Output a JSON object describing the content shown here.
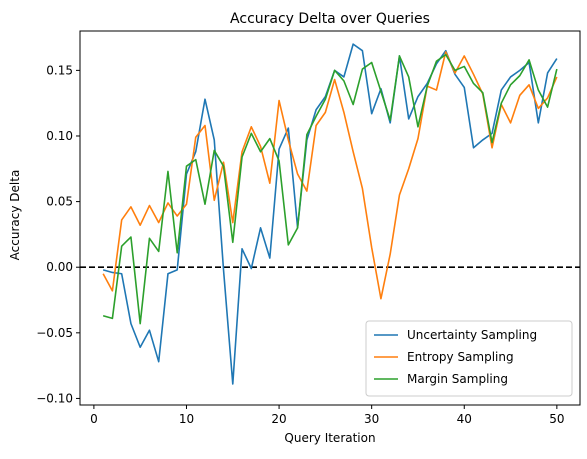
{
  "chart_data": {
    "type": "line",
    "title": "Accuracy Delta over Queries",
    "xlabel": "Query Iteration",
    "ylabel": "Accuracy Delta",
    "xlim": [
      -1.5,
      52.5
    ],
    "ylim": [
      -0.105,
      0.18
    ],
    "xticks": [
      0,
      10,
      20,
      30,
      40,
      50
    ],
    "yticks": [
      -0.1,
      -0.05,
      0.0,
      0.05,
      0.1,
      0.15
    ],
    "xtick_labels": [
      "0",
      "10",
      "20",
      "30",
      "40",
      "50"
    ],
    "ytick_labels": [
      "−0.10",
      "−0.05",
      "0.00",
      "0.05",
      "0.10",
      "0.15"
    ],
    "grid": false,
    "legend_position": "lower-right",
    "reference_line": {
      "y": 0.0,
      "style": "dashed",
      "color": "#000000"
    },
    "x": [
      1,
      2,
      3,
      4,
      5,
      6,
      7,
      8,
      9,
      10,
      11,
      12,
      13,
      14,
      15,
      16,
      17,
      18,
      19,
      20,
      21,
      22,
      23,
      24,
      25,
      26,
      27,
      28,
      29,
      30,
      31,
      32,
      33,
      34,
      35,
      36,
      37,
      38,
      39,
      40,
      41,
      42,
      43,
      44,
      45,
      46,
      47,
      48,
      49,
      50
    ],
    "series": [
      {
        "name": "Uncertainty Sampling",
        "color": "#1f77b4",
        "values": [
          -0.002,
          -0.004,
          -0.005,
          -0.043,
          -0.061,
          -0.048,
          -0.072,
          -0.005,
          -0.002,
          0.071,
          0.088,
          0.128,
          0.097,
          -0.002,
          -0.089,
          0.014,
          -0.001,
          0.03,
          0.007,
          0.09,
          0.106,
          0.03,
          0.097,
          0.12,
          0.13,
          0.15,
          0.145,
          0.17,
          0.165,
          0.117,
          0.136,
          0.11,
          0.161,
          0.113,
          0.13,
          0.14,
          0.155,
          0.165,
          0.147,
          0.137,
          0.091,
          0.097,
          0.102,
          0.135,
          0.145,
          0.15,
          0.156,
          0.11,
          0.148,
          0.159
        ]
      },
      {
        "name": "Entropy Sampling",
        "color": "#ff7f0e",
        "values": [
          -0.005,
          -0.018,
          0.036,
          0.046,
          0.032,
          0.047,
          0.034,
          0.049,
          0.039,
          0.048,
          0.099,
          0.108,
          0.051,
          0.08,
          0.034,
          0.088,
          0.107,
          0.092,
          0.064,
          0.127,
          0.097,
          0.071,
          0.058,
          0.108,
          0.118,
          0.143,
          0.118,
          0.088,
          0.06,
          0.015,
          -0.024,
          0.01,
          0.055,
          0.075,
          0.098,
          0.138,
          0.135,
          0.164,
          0.148,
          0.161,
          0.147,
          0.132,
          0.091,
          0.124,
          0.11,
          0.131,
          0.139,
          0.121,
          0.129,
          0.145
        ]
      },
      {
        "name": "Margin Sampling",
        "color": "#2ca02c",
        "values": [
          -0.037,
          -0.039,
          0.016,
          0.023,
          -0.043,
          0.022,
          0.012,
          0.073,
          0.011,
          0.077,
          0.082,
          0.048,
          0.089,
          0.077,
          0.019,
          0.084,
          0.102,
          0.088,
          0.098,
          0.081,
          0.017,
          0.03,
          0.101,
          0.115,
          0.128,
          0.15,
          0.142,
          0.124,
          0.151,
          0.156,
          0.134,
          0.112,
          0.161,
          0.145,
          0.107,
          0.138,
          0.157,
          0.162,
          0.15,
          0.153,
          0.14,
          0.133,
          0.095,
          0.125,
          0.139,
          0.146,
          0.158,
          0.135,
          0.122,
          0.151
        ]
      }
    ]
  }
}
